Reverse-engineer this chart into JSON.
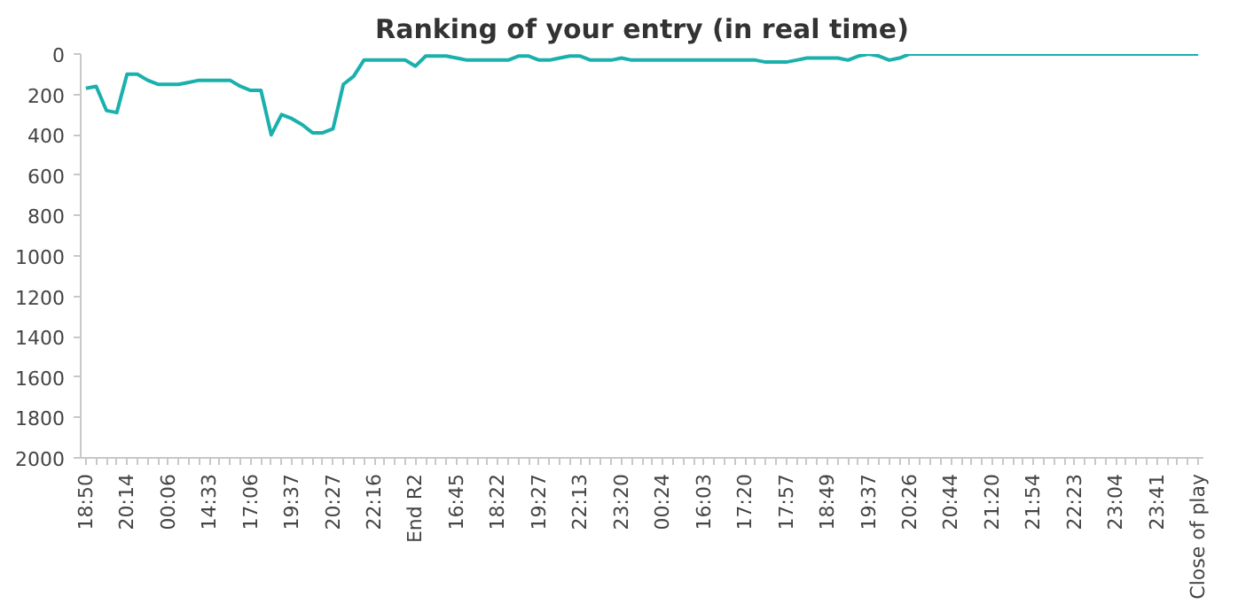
{
  "chart_data": {
    "type": "line",
    "title": "Ranking of your entry (in real time)",
    "categories": [
      "18:50",
      null,
      null,
      null,
      "20:14",
      null,
      null,
      null,
      "00:06",
      null,
      null,
      null,
      "14:33",
      null,
      null,
      null,
      "17:06",
      null,
      null,
      null,
      "19:37",
      null,
      null,
      null,
      "20:27",
      null,
      null,
      null,
      "22:16",
      null,
      null,
      null,
      "End R2",
      null,
      null,
      null,
      "16:45",
      null,
      null,
      null,
      "18:22",
      null,
      null,
      null,
      "19:27",
      null,
      null,
      null,
      "22:13",
      null,
      null,
      null,
      "23:20",
      null,
      null,
      null,
      "00:24",
      null,
      null,
      null,
      "16:03",
      null,
      null,
      null,
      "17:20",
      null,
      null,
      null,
      "17:57",
      null,
      null,
      null,
      "18:49",
      null,
      null,
      null,
      "19:37",
      null,
      null,
      null,
      "20:26",
      null,
      null,
      null,
      "20:44",
      null,
      null,
      null,
      "21:20",
      null,
      null,
      null,
      "21:54",
      null,
      null,
      null,
      "22:23",
      null,
      null,
      null,
      "23:04",
      null,
      null,
      null,
      "23:41",
      null,
      null,
      null,
      "Close of play"
    ],
    "series": [
      {
        "color": "#1ab0ac",
        "values": [
          170,
          160,
          280,
          290,
          100,
          100,
          130,
          150,
          150,
          150,
          140,
          130,
          130,
          130,
          130,
          160,
          180,
          180,
          400,
          300,
          320,
          350,
          390,
          390,
          370,
          150,
          110,
          30,
          30,
          30,
          30,
          30,
          60,
          10,
          10,
          10,
          20,
          30,
          30,
          30,
          30,
          30,
          10,
          10,
          30,
          30,
          20,
          10,
          10,
          30,
          30,
          30,
          20,
          30,
          30,
          30,
          30,
          30,
          30,
          30,
          30,
          30,
          30,
          30,
          30,
          30,
          40,
          40,
          40,
          30,
          20,
          20,
          20,
          20,
          30,
          10,
          0,
          10,
          30,
          20,
          0,
          0,
          0,
          0,
          0,
          0,
          0,
          0,
          0,
          0,
          0,
          0,
          0,
          0,
          0,
          0,
          0,
          0,
          0,
          0,
          0,
          0,
          0,
          0,
          0,
          0,
          0,
          0,
          0
        ]
      }
    ],
    "ylim": [
      2000,
      0
    ],
    "yticks": [
      0,
      200,
      400,
      600,
      800,
      1000,
      1200,
      1400,
      1600,
      1800,
      2000
    ],
    "grid": false,
    "marker": "none",
    "line_style": "solid"
  }
}
